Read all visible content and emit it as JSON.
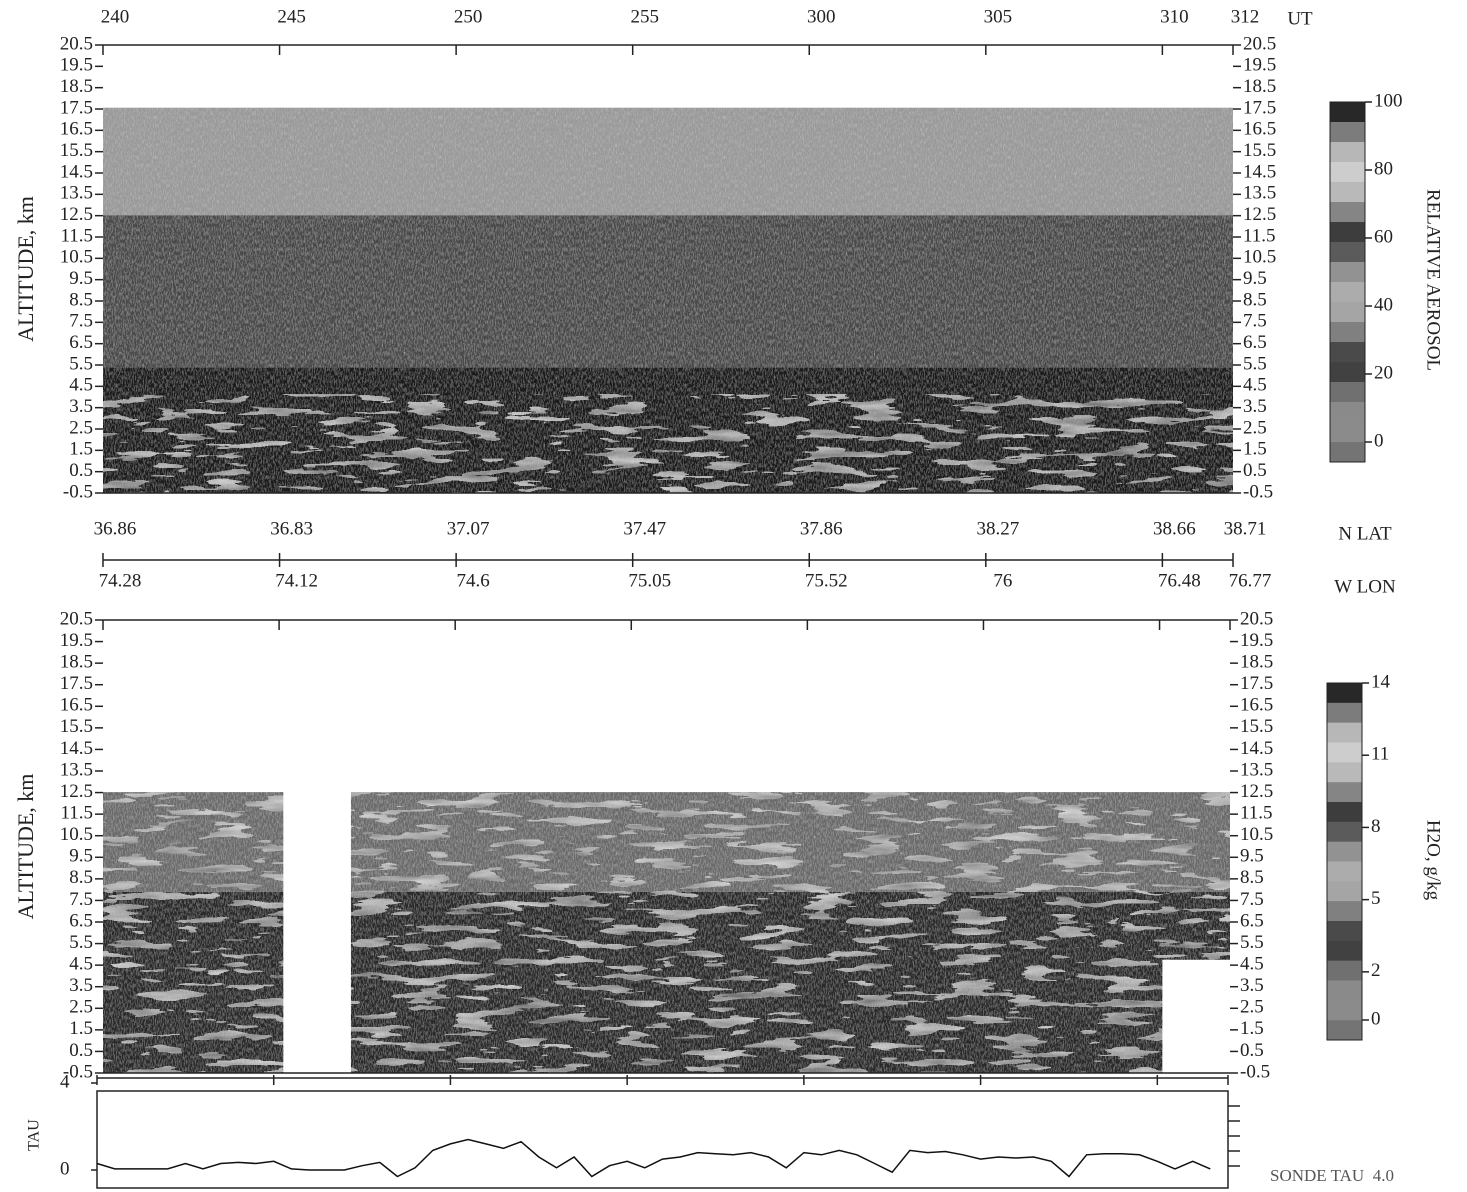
{
  "chart_data": [
    {
      "type": "heatmap",
      "ylabel": "ALTITUDE, km",
      "xlabel": "UT",
      "xlim": [
        160,
        192
      ],
      "xticks": [
        {
          "value": 160,
          "label": "240"
        },
        {
          "value": 165,
          "label": "245"
        },
        {
          "value": 170,
          "label": "250"
        },
        {
          "value": 175,
          "label": "255"
        },
        {
          "value": 180,
          "label": "300"
        },
        {
          "value": 185,
          "label": "305"
        },
        {
          "value": 190,
          "label": "310"
        },
        {
          "value": 192,
          "label": "312"
        }
      ],
      "lat_label": "N LAT",
      "lat": [
        36.86,
        36.83,
        37.07,
        37.47,
        37.86,
        38.27,
        38.66,
        38.71
      ],
      "lon_label": "W LON",
      "lon": [
        74.28,
        74.12,
        74.6,
        75.05,
        75.52,
        76.0,
        76.48,
        76.77
      ],
      "ylim": [
        -0.5,
        20.5
      ],
      "yticks": [
        20.5,
        19.5,
        18.5,
        17.5,
        16.5,
        15.5,
        14.5,
        13.5,
        12.5,
        11.5,
        10.5,
        9.5,
        8.5,
        7.5,
        6.5,
        5.5,
        4.5,
        3.5,
        2.5,
        1.5,
        0.5,
        -0.5
      ],
      "colorbar": {
        "label": "RELATIVE AEROSOL",
        "ticks": [
          0,
          20,
          40,
          60,
          80,
          100
        ]
      }
    },
    {
      "type": "heatmap",
      "ylabel": "ALTITUDE, km",
      "xlim": [
        160,
        192
      ],
      "ylim": [
        -0.5,
        20.5
      ],
      "yticks": [
        20.5,
        19.5,
        18.5,
        17.5,
        16.5,
        15.5,
        14.5,
        13.5,
        12.5,
        11.5,
        10.5,
        9.5,
        8.5,
        7.5,
        6.5,
        5.5,
        4.5,
        3.5,
        2.5,
        1.5,
        0.5,
        -0.5
      ],
      "colorbar": {
        "label": "H2O, g/kg",
        "ticks": [
          0,
          2,
          5,
          8,
          11,
          14
        ]
      }
    },
    {
      "type": "line",
      "ylabel": "TAU",
      "annotation": "SONDE TAU  4.0",
      "xlim": [
        160,
        192
      ],
      "ylim": [
        0,
        4
      ],
      "yticks": [
        0,
        4
      ],
      "x": [
        160,
        160.5,
        161,
        161.5,
        162,
        162.5,
        163,
        163.5,
        164,
        164.5,
        165,
        165.5,
        166,
        166.5,
        167,
        167.5,
        168,
        168.5,
        169,
        169.5,
        170,
        170.5,
        171,
        171.5,
        172,
        172.5,
        173,
        173.5,
        174,
        174.5,
        175,
        175.5,
        176,
        176.5,
        177,
        177.5,
        178,
        178.5,
        179,
        179.5,
        180,
        180.5,
        181,
        181.5,
        182,
        182.5,
        183,
        183.5,
        184,
        184.5,
        185,
        185.5,
        186,
        186.5,
        187,
        187.5,
        188,
        188.5,
        189,
        189.5,
        190,
        190.5,
        191,
        191.5
      ],
      "values": [
        0.3,
        0.05,
        0.05,
        0.05,
        0.05,
        0.3,
        0.05,
        0.3,
        0.35,
        0.3,
        0.4,
        0.05,
        0.0,
        0.0,
        0.0,
        0.2,
        0.35,
        -0.3,
        0.1,
        0.9,
        1.2,
        1.4,
        1.2,
        1.0,
        1.3,
        0.6,
        0.1,
        0.6,
        -0.3,
        0.2,
        0.4,
        0.1,
        0.5,
        0.6,
        0.8,
        0.75,
        0.7,
        0.8,
        0.6,
        0.1,
        0.8,
        0.7,
        0.9,
        0.7,
        0.3,
        -0.1,
        0.9,
        0.8,
        0.85,
        0.7,
        0.5,
        0.6,
        0.55,
        0.6,
        0.4,
        -0.3,
        0.7,
        0.75,
        0.75,
        0.7,
        0.4,
        0.05,
        0.4,
        0.05
      ]
    }
  ]
}
